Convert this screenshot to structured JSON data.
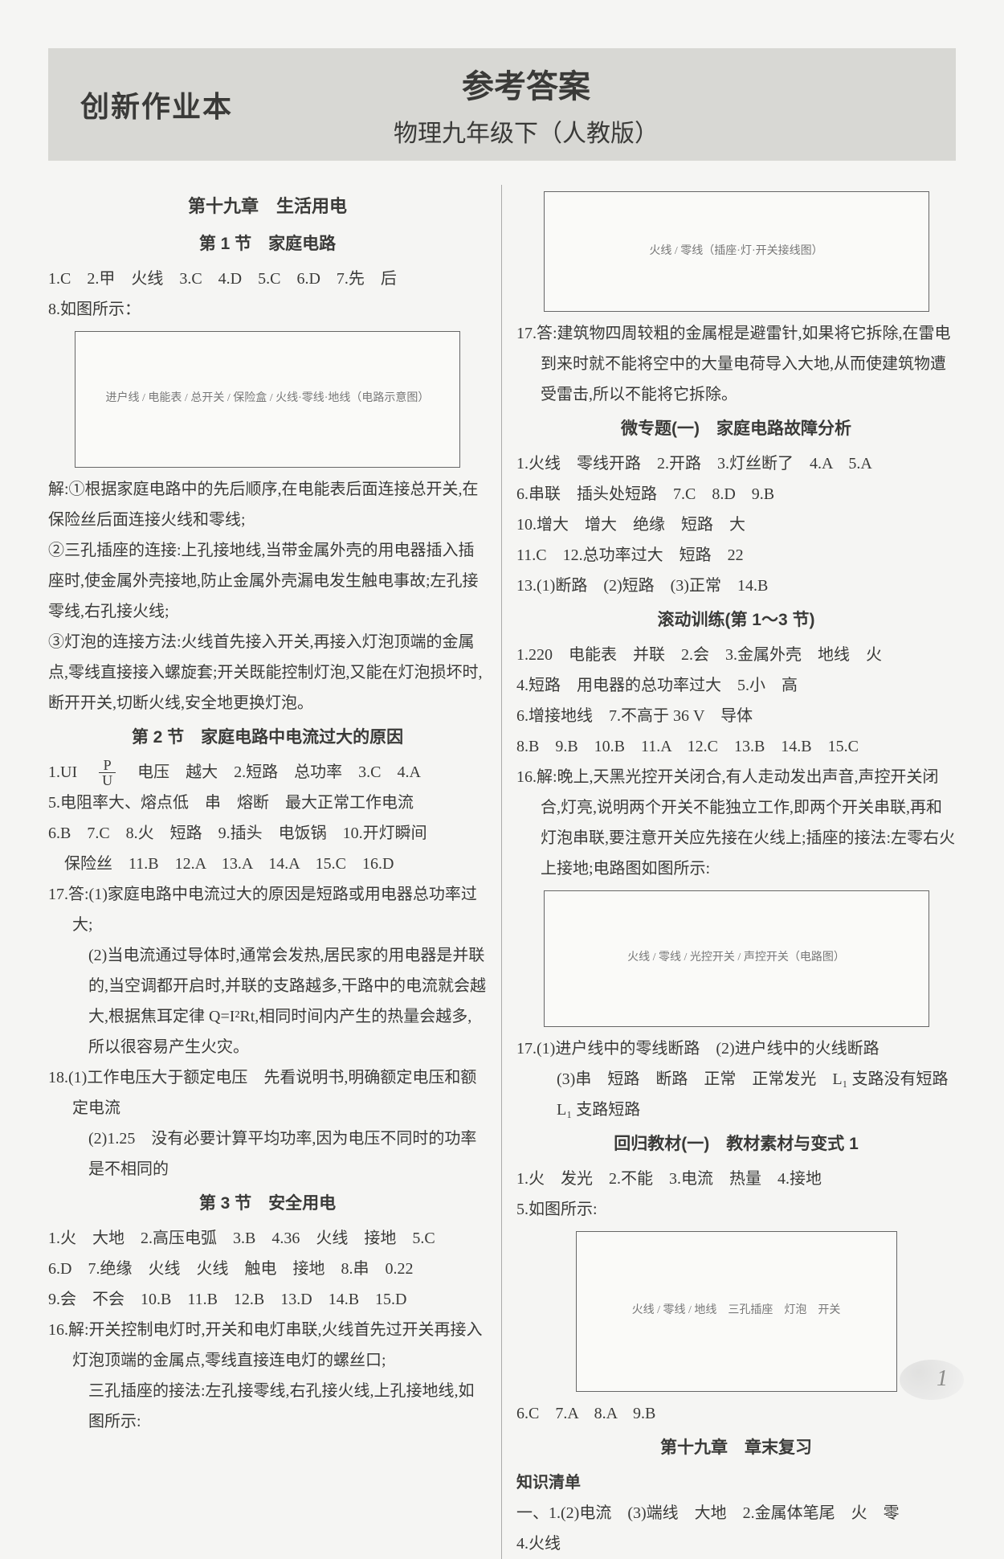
{
  "header": {
    "logo": "创新作业本",
    "title_main": "参考答案",
    "title_sub": "物理九年级下（人教版）"
  },
  "left": {
    "chapter": "第十九章　生活用电",
    "s1": {
      "title": "第 1 节　家庭电路",
      "l1": "1.C　2.甲　火线　3.C　4.D　5.C　6.D　7.先　后",
      "l2": "8.如图所示：",
      "diag_label": "进户线 / 电能表 / 总开关 / 保险盒 / 火线·零线·地线（电路示意图）",
      "p1": "解:①根据家庭电路中的先后顺序,在电能表后面连接总开关,在保险丝后面连接火线和零线;",
      "p2": "②三孔插座的连接:上孔接地线,当带金属外壳的用电器插入插座时,使金属外壳接地,防止金属外壳漏电发生触电事故;左孔接零线,右孔接火线;",
      "p3": "③灯泡的连接方法:火线首先接入开关,再接入灯泡顶端的金属点,零线直接接入螺旋套;开关既能控制灯泡,又能在灯泡损坏时,断开开关,切断火线,安全地更换灯泡。"
    },
    "s2": {
      "title": "第 2 节　家庭电路中电流过大的原因",
      "l1_a": "1.UI　",
      "l1_b": "　电压　越大　2.短路　总功率　3.C　4.A",
      "l2": "5.电阻率大、熔点低　串　熔断　最大正常工作电流",
      "l3": "6.B　7.C　8.火　短路　9.插头　电饭锅　10.开灯瞬间",
      "l4": "　保险丝　11.B　12.A　13.A　14.A　15.C　16.D",
      "l5": "17.答:(1)家庭电路中电流过大的原因是短路或用电器总功率过大;",
      "l6": "(2)当电流通过导体时,通常会发热,居民家的用电器是并联的,当空调都开启时,并联的支路越多,干路中的电流就会越大,根据焦耳定律 Q=I²Rt,相同时间内产生的热量会越多,所以很容易产生火灾。",
      "l7": "18.(1)工作电压大于额定电压　先看说明书,明确额定电压和额定电流",
      "l8": "(2)1.25　没有必要计算平均功率,因为电压不同时的功率是不相同的"
    },
    "s3": {
      "title": "第 3 节　安全用电",
      "l1": "1.火　大地　2.高压电弧　3.B　4.36　火线　接地　5.C",
      "l2": "6.D　7.绝缘　火线　火线　触电　接地　8.串　0.22",
      "l3": "9.会　不会　10.B　11.B　12.B　13.D　14.B　15.D",
      "l4": "16.解:开关控制电灯时,开关和电灯串联,火线首先过开关再接入灯泡顶端的金属点,零线直接连电灯的螺丝口;",
      "l5": "三孔插座的接法:左孔接零线,右孔接火线,上孔接地线,如图所示:"
    }
  },
  "right": {
    "diag2_label": "火线 / 零线（插座·灯·开关接线图）",
    "r1": "17.答:建筑物四周较粗的金属棍是避雷针,如果将它拆除,在雷电到来时就不能将空中的大量电荷导入大地,从而使建筑物遭受雷击,所以不能将它拆除。",
    "mt1": {
      "title": "微专题(一)　家庭电路故障分析",
      "l1": "1.火线　零线开路　2.开路　3.灯丝断了　4.A　5.A",
      "l2": "6.串联　插头处短路　7.C　8.D　9.B",
      "l3": "10.增大　增大　绝缘　短路　大",
      "l4": "11.C　12.总功率过大　短路　22",
      "l5": "13.(1)断路　(2)短路　(3)正常　14.B"
    },
    "roll": {
      "title": "滚动训练(第 1～3 节)",
      "l1": "1.220　电能表　并联　2.会　3.金属外壳　地线　火",
      "l2": "4.短路　用电器的总功率过大　5.小　高",
      "l3": "6.增接地线　7.不高于 36 V　导体",
      "l4": "8.B　9.B　10.B　11.A　12.C　13.B　14.B　15.C",
      "l5": "16.解:晚上,天黑光控开关闭合,有人走动发出声音,声控开关闭合,灯亮,说明两个开关不能独立工作,即两个开关串联,再和灯泡串联,要注意开关应先接在火线上;插座的接法:左零右火上接地;电路图如图所示:",
      "diag3_label": "火线 / 零线 / 光控开关 / 声控开关（电路图）",
      "l6": "17.(1)进户线中的零线断路　(2)进户线中的火线断路",
      "l7": "(3)串　短路　断路　正常　正常发光　L₁ 支路没有短路　L₁ 支路短路"
    },
    "back": {
      "title": "回归教材(一)　教材素材与变式 1",
      "l1": "1.火　发光　2.不能　3.电流　热量　4.接地",
      "l2": "5.如图所示:",
      "diag4_label": "火线 / 零线 / 地线　三孔插座　灯泡　开关",
      "l3": "6.C　7.A　8.A　9.B"
    },
    "review": {
      "title": "第十九章　章末复习",
      "sub": "知识清单",
      "l1": "一、1.(2)电流　(3)端线　大地　2.金属体笔尾　火　零",
      "l2": "4.火线"
    }
  },
  "page_number": "1"
}
